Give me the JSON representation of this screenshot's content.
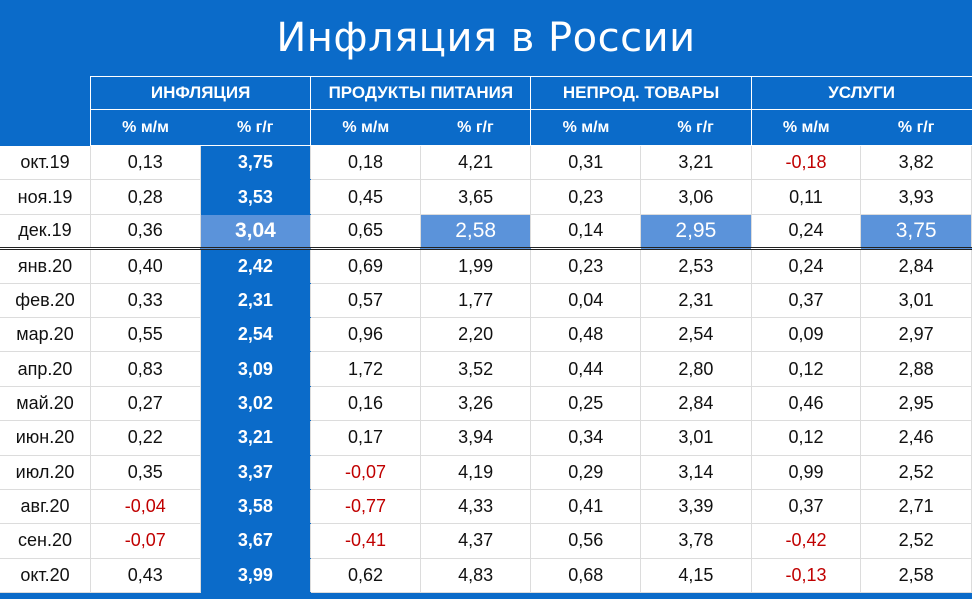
{
  "title": "Инфляция в России",
  "groups": [
    "ИНФЛЯЦИЯ",
    "ПРОДУКТЫ ПИТАНИЯ",
    "НЕПРОД. ТОВАРЫ",
    "УСЛУГИ"
  ],
  "subheaders": [
    "% м/м",
    "% г/г",
    "% м/м",
    "% г/г",
    "% м/м",
    "% г/г",
    "% м/м",
    "% г/г"
  ],
  "colors": {
    "background": "#0b6bc9",
    "highlight": "#5b93da",
    "negative": "#c00000"
  },
  "rows": [
    {
      "label": "окт.19",
      "values": [
        "0,13",
        "3,75",
        "0,18",
        "4,21",
        "0,31",
        "3,21",
        "-0,18",
        "3,82"
      ]
    },
    {
      "label": "ноя.19",
      "values": [
        "0,28",
        "3,53",
        "0,45",
        "3,65",
        "0,23",
        "3,06",
        "0,11",
        "3,93"
      ]
    },
    {
      "label": "дек.19",
      "values": [
        "0,36",
        "3,04",
        "0,65",
        "2,58",
        "0,14",
        "2,95",
        "0,24",
        "3,75"
      ]
    },
    {
      "label": "янв.20",
      "values": [
        "0,40",
        "2,42",
        "0,69",
        "1,99",
        "0,23",
        "2,53",
        "0,24",
        "2,84"
      ]
    },
    {
      "label": "фев.20",
      "values": [
        "0,33",
        "2,31",
        "0,57",
        "1,77",
        "0,04",
        "2,31",
        "0,37",
        "3,01"
      ]
    },
    {
      "label": "мар.20",
      "values": [
        "0,55",
        "2,54",
        "0,96",
        "2,20",
        "0,48",
        "2,54",
        "0,09",
        "2,97"
      ]
    },
    {
      "label": "апр.20",
      "values": [
        "0,83",
        "3,09",
        "1,72",
        "3,52",
        "0,44",
        "2,80",
        "0,12",
        "2,88"
      ]
    },
    {
      "label": "май.20",
      "values": [
        "0,27",
        "3,02",
        "0,16",
        "3,26",
        "0,25",
        "2,84",
        "0,46",
        "2,95"
      ]
    },
    {
      "label": "июн.20",
      "values": [
        "0,22",
        "3,21",
        "0,17",
        "3,94",
        "0,34",
        "3,01",
        "0,12",
        "2,46"
      ]
    },
    {
      "label": "июл.20",
      "values": [
        "0,35",
        "3,37",
        "-0,07",
        "4,19",
        "0,29",
        "3,14",
        "0,99",
        "2,52"
      ]
    },
    {
      "label": "авг.20",
      "values": [
        "-0,04",
        "3,58",
        "-0,77",
        "4,33",
        "0,41",
        "3,39",
        "0,37",
        "2,71"
      ]
    },
    {
      "label": "сен.20",
      "values": [
        "-0,07",
        "3,67",
        "-0,41",
        "4,37",
        "0,56",
        "3,78",
        "-0,42",
        "2,52"
      ]
    },
    {
      "label": "окт.20",
      "values": [
        "0,43",
        "3,99",
        "0,62",
        "4,83",
        "0,68",
        "4,15",
        "-0,13",
        "2,58"
      ]
    }
  ]
}
